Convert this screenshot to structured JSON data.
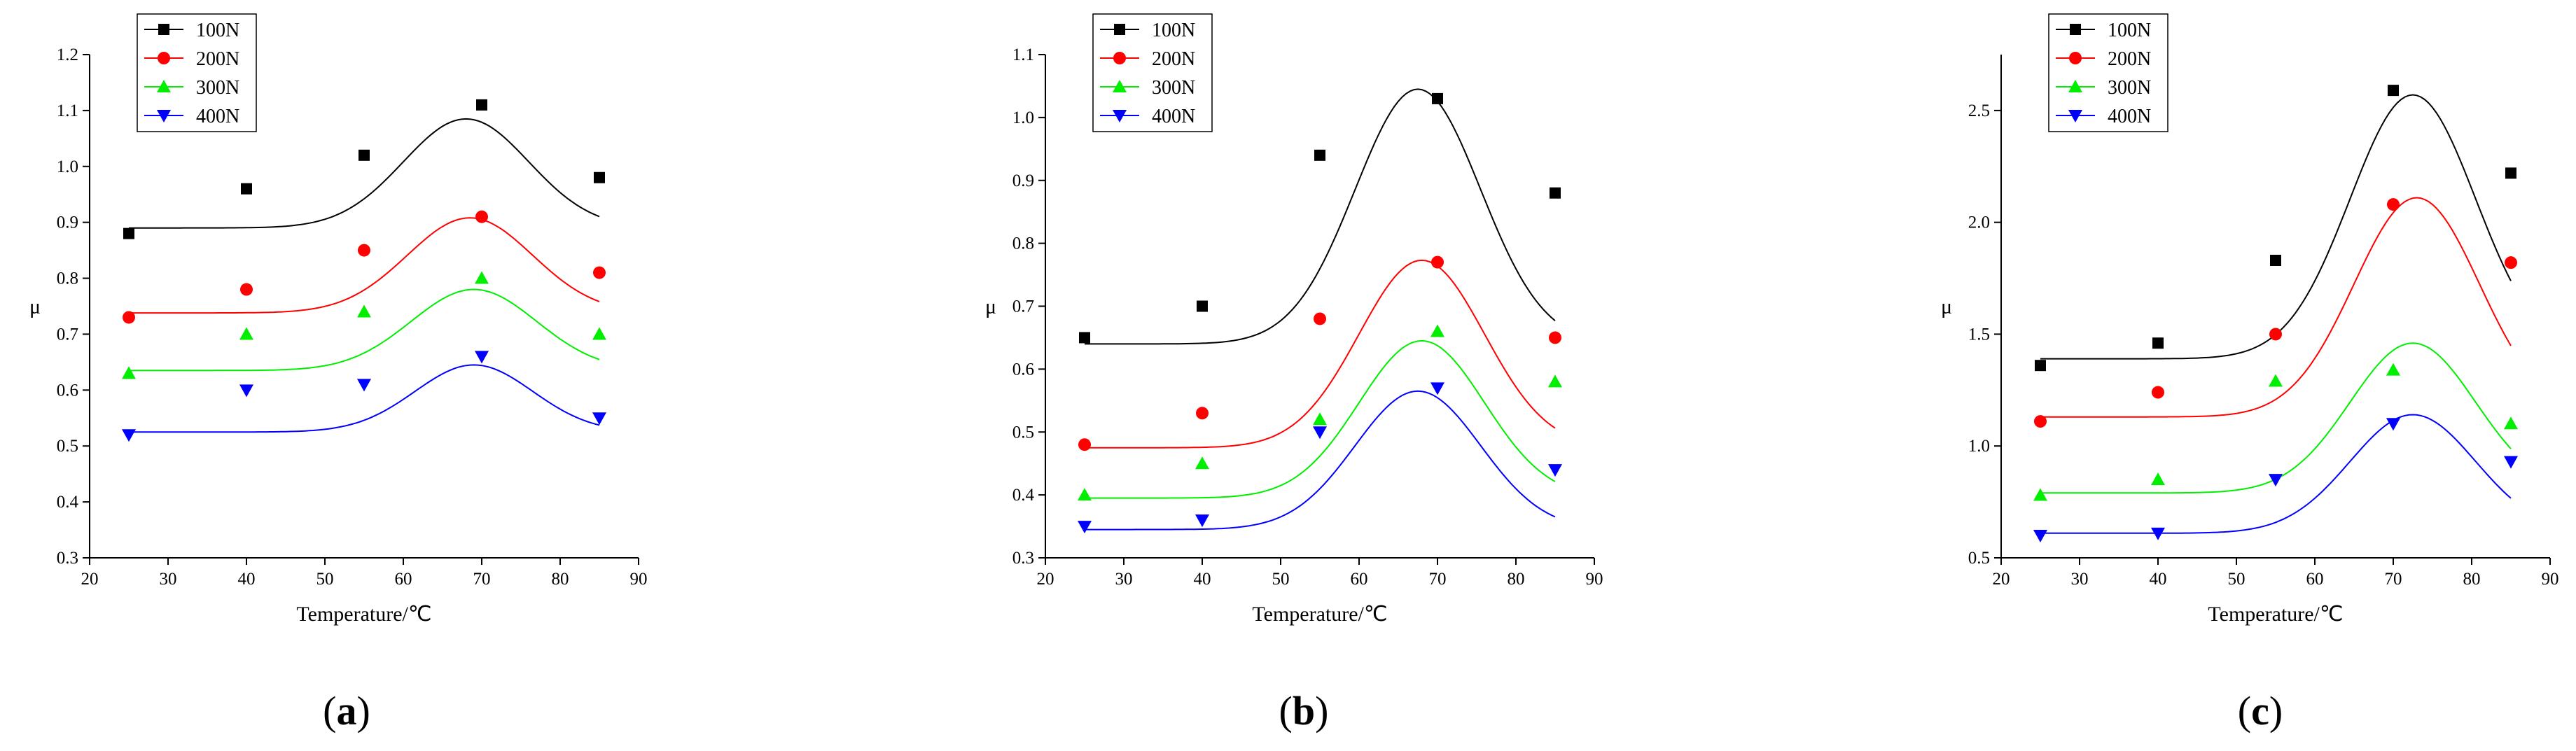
{
  "colors": {
    "100N": "#000000",
    "200N": "#ff0000",
    "300N": "#00ee00",
    "400N": "#0000ff"
  },
  "chart_data": [
    {
      "type": "scatter",
      "panel": "a",
      "label_open": "(",
      "label_letter": "a",
      "label_close": ")",
      "xlabel": "Temperature/℃",
      "ylabel": "μ",
      "xlim": [
        20,
        90
      ],
      "ylim": [
        0.3,
        1.2
      ],
      "xticks": [
        20,
        30,
        40,
        50,
        60,
        70,
        80,
        90
      ],
      "yticks": [
        0.3,
        0.4,
        0.5,
        0.6,
        0.7,
        0.8,
        0.9,
        1.0,
        1.1,
        1.2
      ],
      "ytick_labels": [
        "0.3",
        "0.4",
        "0.5",
        "0.6",
        "0.7",
        "0.8",
        "0.9",
        "1.0",
        "1.1",
        "1.2"
      ],
      "x": [
        25,
        40,
        55,
        70,
        85
      ],
      "series": [
        {
          "name": "100N",
          "marker": "square",
          "values": [
            0.88,
            0.96,
            1.02,
            1.11,
            0.98
          ],
          "fit": {
            "y0": 0.89,
            "A": 0.195,
            "xc": 68,
            "w": 16
          }
        },
        {
          "name": "200N",
          "marker": "circle",
          "values": [
            0.73,
            0.78,
            0.85,
            0.91,
            0.81
          ],
          "fit": {
            "y0": 0.738,
            "A": 0.17,
            "xc": 68.5,
            "w": 16
          }
        },
        {
          "name": "300N",
          "marker": "triangle-up",
          "values": [
            0.63,
            0.7,
            0.74,
            0.8,
            0.7
          ],
          "fit": {
            "y0": 0.635,
            "A": 0.145,
            "xc": 69,
            "w": 16
          }
        },
        {
          "name": "400N",
          "marker": "triangle-down",
          "values": [
            0.52,
            0.6,
            0.61,
            0.66,
            0.55
          ],
          "fit": {
            "y0": 0.525,
            "A": 0.12,
            "xc": 69,
            "w": 15
          }
        }
      ],
      "legend": [
        "100N",
        "200N",
        "300N",
        "400N"
      ],
      "legend_position": "top-left"
    },
    {
      "type": "scatter",
      "panel": "b",
      "label_open": "(",
      "label_letter": "b",
      "label_close": ")",
      "xlabel": "Temperature/℃",
      "ylabel": "μ",
      "xlim": [
        20,
        90
      ],
      "ylim": [
        0.3,
        1.1
      ],
      "xticks": [
        20,
        30,
        40,
        50,
        60,
        70,
        80,
        90
      ],
      "yticks": [
        0.3,
        0.4,
        0.5,
        0.6,
        0.7,
        0.8,
        0.9,
        1.0,
        1.1
      ],
      "ytick_labels": [
        "0.3",
        "0.4",
        "0.5",
        "0.6",
        "0.7",
        "0.8",
        "0.9",
        "1.0",
        "1.1"
      ],
      "x": [
        25,
        40,
        55,
        70,
        85
      ],
      "series": [
        {
          "name": "100N",
          "marker": "square",
          "values": [
            0.65,
            0.7,
            0.94,
            1.03,
            0.88
          ],
          "fit": {
            "y0": 0.64,
            "A": 0.405,
            "xc": 67.5,
            "w": 16
          }
        },
        {
          "name": "200N",
          "marker": "circle",
          "values": [
            0.48,
            0.53,
            0.68,
            0.77,
            0.65
          ],
          "fit": {
            "y0": 0.475,
            "A": 0.298,
            "xc": 68,
            "w": 16
          }
        },
        {
          "name": "300N",
          "marker": "triangle-up",
          "values": [
            0.4,
            0.45,
            0.52,
            0.66,
            0.58
          ],
          "fit": {
            "y0": 0.395,
            "A": 0.25,
            "xc": 68,
            "w": 16
          }
        },
        {
          "name": "400N",
          "marker": "triangle-down",
          "values": [
            0.35,
            0.36,
            0.5,
            0.57,
            0.44
          ],
          "fit": {
            "y0": 0.345,
            "A": 0.22,
            "xc": 67.5,
            "w": 16
          }
        }
      ],
      "legend": [
        "100N",
        "200N",
        "300N",
        "400N"
      ],
      "legend_position": "top-left"
    },
    {
      "type": "scatter",
      "panel": "c",
      "label_open": "(",
      "label_letter": "c",
      "label_close": ")",
      "xlabel": "Temperature/℃",
      "ylabel": "μ",
      "xlim": [
        20,
        90
      ],
      "ylim": [
        0.5,
        2.75
      ],
      "xticks": [
        20,
        30,
        40,
        50,
        60,
        70,
        80,
        90
      ],
      "yticks": [
        0.5,
        1.0,
        1.5,
        2.0,
        2.5
      ],
      "ytick_labels": [
        "0.5",
        "1.0",
        "1.5",
        "2.0",
        "2.5"
      ],
      "x": [
        25,
        40,
        55,
        70,
        85
      ],
      "series": [
        {
          "name": "100N",
          "marker": "square",
          "values": [
            1.36,
            1.46,
            1.83,
            2.59,
            2.22
          ],
          "fit": {
            "y0": 1.39,
            "A": 1.18,
            "xc": 72.5,
            "w": 16
          }
        },
        {
          "name": "200N",
          "marker": "circle",
          "values": [
            1.11,
            1.24,
            1.5,
            2.08,
            1.82
          ],
          "fit": {
            "y0": 1.13,
            "A": 0.98,
            "xc": 73,
            "w": 16
          }
        },
        {
          "name": "300N",
          "marker": "triangle-up",
          "values": [
            0.78,
            0.85,
            1.29,
            1.34,
            1.1
          ],
          "fit": {
            "y0": 0.79,
            "A": 0.67,
            "xc": 72.5,
            "w": 16
          }
        },
        {
          "name": "400N",
          "marker": "triangle-down",
          "values": [
            0.6,
            0.61,
            0.85,
            1.1,
            0.93
          ],
          "fit": {
            "y0": 0.61,
            "A": 0.53,
            "xc": 72.5,
            "w": 16
          }
        }
      ],
      "legend": [
        "100N",
        "200N",
        "300N",
        "400N"
      ],
      "legend_position": "top-left"
    }
  ]
}
